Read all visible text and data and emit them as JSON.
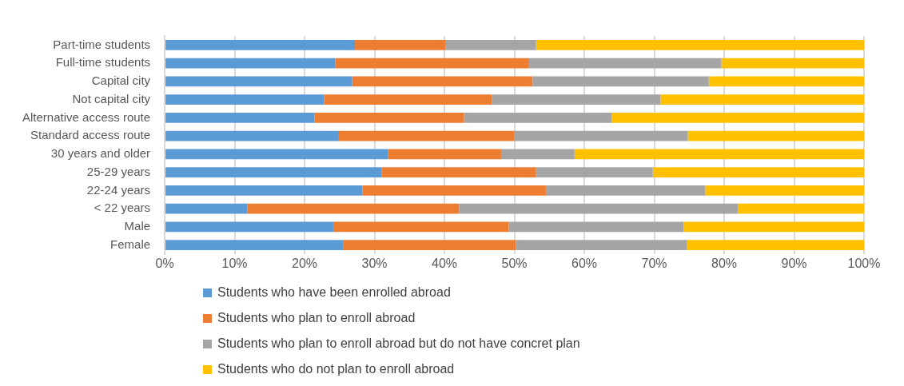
{
  "chart_data": {
    "type": "bar",
    "orientation": "horizontal",
    "stacked": true,
    "grid": "x",
    "legend": "bottom",
    "categories": [
      "Part-time students",
      "Full-time students",
      "Capital city",
      "Not capital city",
      "Alternative access route",
      "Standard access route",
      "30 years and older",
      "25-29 years",
      "22-24 years",
      "< 22 years",
      "Male",
      "Female"
    ],
    "series": [
      {
        "name": "Students who have been enrolled abroad",
        "color": "#5b9bd5",
        "values": [
          27.2,
          24.4,
          26.8,
          22.8,
          21.4,
          24.9,
          31.9,
          31.0,
          28.3,
          11.8,
          24.1,
          25.5
        ]
      },
      {
        "name": "Students who plan to enroll abroad",
        "color": "#ed7d31",
        "values": [
          13.0,
          27.7,
          25.8,
          24.0,
          21.4,
          25.1,
          16.2,
          22.1,
          26.2,
          30.3,
          25.1,
          24.7
        ]
      },
      {
        "name": "Students who plan to enroll abroad but do not have concret plan",
        "color": "#a5a5a5",
        "values": [
          12.9,
          27.5,
          25.2,
          24.1,
          21.1,
          24.8,
          10.5,
          16.7,
          22.8,
          39.9,
          25.0,
          24.5
        ]
      },
      {
        "name": "Students who do not plan to enroll abroad",
        "color": "#ffc000",
        "values": [
          46.9,
          20.4,
          22.2,
          29.1,
          36.1,
          25.2,
          41.4,
          30.2,
          22.7,
          18.0,
          25.8,
          25.3
        ]
      }
    ],
    "xlim": [
      0,
      100
    ],
    "xticks": [
      {
        "value": 0,
        "label": "0%"
      },
      {
        "value": 10,
        "label": "10%"
      },
      {
        "value": 20,
        "label": "20%"
      },
      {
        "value": 30,
        "label": "30%"
      },
      {
        "value": 40,
        "label": "40%"
      },
      {
        "value": 50,
        "label": "50%"
      },
      {
        "value": 60,
        "label": "60%"
      },
      {
        "value": 70,
        "label": "70%"
      },
      {
        "value": 80,
        "label": "80%"
      },
      {
        "value": 90,
        "label": "90%"
      },
      {
        "value": 100,
        "label": "100%"
      }
    ]
  }
}
